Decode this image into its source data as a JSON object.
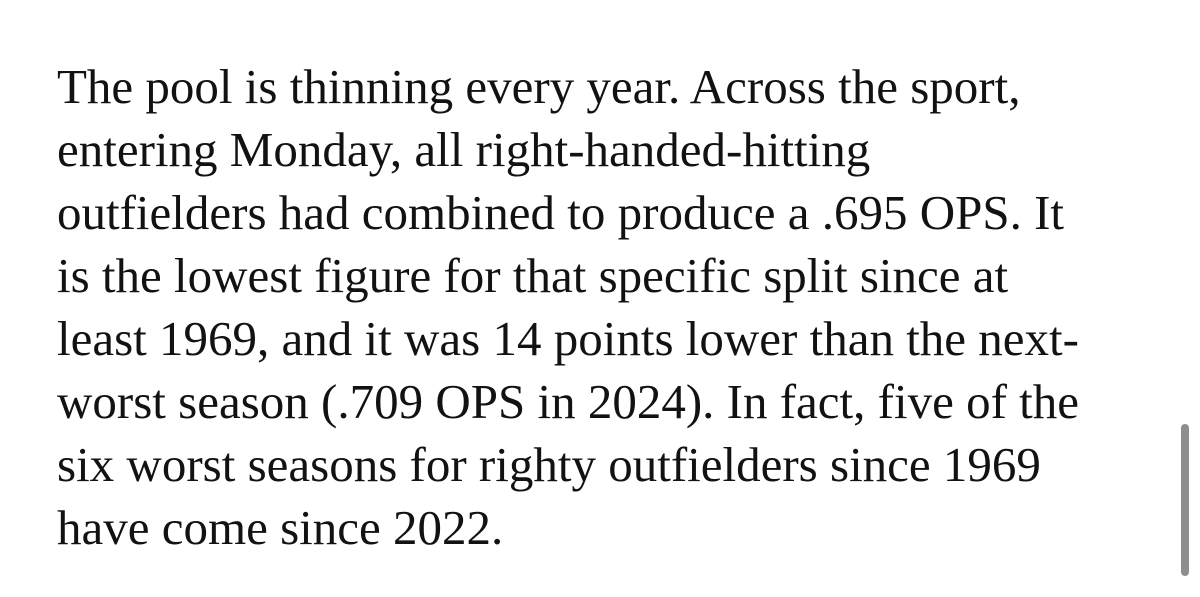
{
  "paragraph": {
    "lines": [
      "The pool is thinning every year. Across the sport,",
      "entering Monday, all right-handed-hitting",
      "outfielders had combined to produce a .695 OPS. It",
      "is the lowest figure for that specific split since at",
      "least 1969, and it was 14 points lower than the next-",
      "worst season (.709 OPS in 2024). In fact, five of the",
      "six worst seasons for righty outfielders since 1969",
      "have come since 2022."
    ]
  }
}
